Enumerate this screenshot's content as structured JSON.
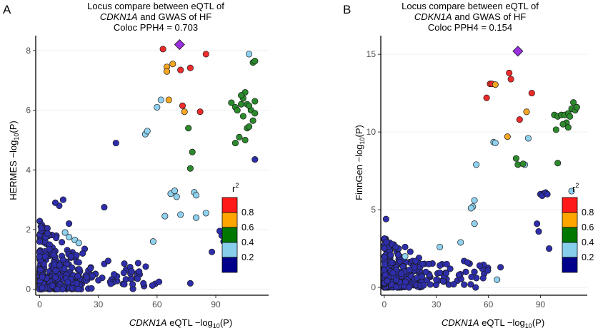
{
  "chart_data": [
    {
      "type": "scatter",
      "panel_letter": "A",
      "title_line1": "Locus compare between eQTL of",
      "title_gene": "CDKN1A",
      "title_line2_rest": " and  GWAS of HF",
      "title_line3": "Coloc PPH4 =  0.703",
      "xlabel_gene": "CDKN1A",
      "xlabel_rest": " eQTL −log",
      "xlabel_sub": "10",
      "xlabel_tail": "(P)",
      "ylabel_prefix": "HERMES −log",
      "ylabel_sub": "10",
      "ylabel_tail": "(P)",
      "xlim": [
        -2,
        117
      ],
      "ylim": [
        -0.2,
        8.5
      ],
      "xticks": [
        0,
        30,
        60,
        90
      ],
      "xtick_labels": [
        "0",
        "30",
        "60",
        "90"
      ],
      "yticks": [
        0,
        2,
        4,
        6,
        8
      ],
      "ytick_labels": [
        "0",
        "2",
        "4",
        "6",
        "8"
      ],
      "lead_snp": {
        "x": 71.5,
        "y": 8.2
      },
      "points": [
        [
          63,
          8.05,
          4
        ],
        [
          65,
          7.45,
          3
        ],
        [
          68,
          7.55,
          3
        ],
        [
          72,
          7.35,
          4
        ],
        [
          77,
          7.42,
          4
        ],
        [
          85,
          7.88,
          4
        ],
        [
          65,
          7.3,
          3
        ],
        [
          66,
          6.35,
          3
        ],
        [
          73,
          6.15,
          4
        ],
        [
          82,
          5.95,
          4
        ],
        [
          74,
          5.95,
          3
        ],
        [
          60,
          6.1,
          1
        ],
        [
          62,
          6.35,
          1
        ],
        [
          54,
          5.2,
          1
        ],
        [
          55,
          5.3,
          1
        ],
        [
          107,
          7.88,
          1
        ],
        [
          64,
          2.45,
          1
        ],
        [
          67,
          3.2,
          1
        ],
        [
          69,
          3.3,
          1
        ],
        [
          70,
          3.1,
          1
        ],
        [
          79,
          3.25,
          1
        ],
        [
          80,
          3.15,
          1
        ],
        [
          72,
          2.5,
          1
        ],
        [
          80,
          2.4,
          1
        ],
        [
          85,
          2.55,
          1
        ],
        [
          58,
          1.6,
          1
        ],
        [
          13,
          1.9,
          1
        ],
        [
          18,
          1.65,
          1
        ],
        [
          20,
          1.55,
          1
        ],
        [
          15,
          1.75,
          1
        ],
        [
          76,
          5.4,
          2
        ],
        [
          78,
          4.6,
          2
        ],
        [
          77,
          4.05,
          2
        ],
        [
          98,
          6.25,
          2
        ],
        [
          100,
          6.1,
          2
        ],
        [
          104,
          6.4,
          2
        ],
        [
          105,
          6.6,
          2
        ],
        [
          106,
          6.2,
          2
        ],
        [
          108,
          6.0,
          2
        ],
        [
          110,
          6.3,
          2
        ],
        [
          109,
          7.6,
          2
        ],
        [
          110,
          7.65,
          2
        ],
        [
          107,
          6.15,
          2
        ],
        [
          103,
          6.2,
          2
        ],
        [
          104,
          5.8,
          2
        ],
        [
          106,
          5.4,
          2
        ],
        [
          107,
          5.45,
          2
        ],
        [
          102,
          5.1,
          2
        ],
        [
          105,
          5.0,
          2
        ],
        [
          100,
          4.9,
          2
        ],
        [
          109,
          5.65,
          2
        ],
        [
          110,
          5.9,
          2
        ],
        [
          103,
          6.5,
          2
        ],
        [
          101,
          6.0,
          2
        ],
        [
          39,
          4.9,
          0
        ],
        [
          110,
          4.35,
          0
        ],
        [
          33,
          2.75,
          0
        ],
        [
          26,
          0.7,
          0
        ],
        [
          27,
          0.45,
          0
        ],
        [
          77,
          0.2,
          0
        ],
        [
          88,
          1.25,
          0
        ],
        [
          93,
          1.8,
          0
        ],
        [
          95,
          1.85,
          0
        ],
        [
          96,
          2.0,
          0
        ],
        [
          94,
          1.6,
          0
        ],
        [
          97,
          1.7,
          0
        ],
        [
          92,
          1.95,
          0
        ],
        [
          95,
          1.4,
          0
        ],
        [
          61,
          0.25,
          0
        ],
        [
          50,
          0.35,
          0
        ],
        [
          43,
          0.55,
          0
        ],
        [
          47,
          0.6,
          0
        ],
        [
          53,
          0.2,
          0
        ],
        [
          33,
          0.85,
          0
        ],
        [
          35,
          0.95,
          0
        ],
        [
          30,
          0.3,
          0
        ],
        [
          38,
          0.5,
          0
        ],
        [
          23,
          1.35,
          0
        ],
        [
          15,
          2.2,
          0
        ],
        [
          12,
          3.0,
          0
        ],
        [
          10,
          2.8,
          0
        ],
        [
          8,
          2.9,
          0
        ],
        [
          22,
          1.2,
          0
        ],
        [
          20,
          0.9,
          0
        ],
        [
          16,
          1.1,
          0
        ],
        [
          24,
          0.4,
          0
        ],
        [
          19,
          0.2,
          0
        ]
      ]
    },
    {
      "type": "scatter",
      "panel_letter": "B",
      "title_line1": "Locus compare between eQTL of",
      "title_gene": "CDKN1A",
      "title_line2_rest": " and  GWAS of HF",
      "title_line3": "Coloc PPH4 =  0.154",
      "xlabel_gene": "CDKN1A",
      "xlabel_rest": " eQTL −log",
      "xlabel_sub": "10",
      "xlabel_tail": "(P)",
      "ylabel_prefix": "FinnGen  −log",
      "ylabel_sub": "10",
      "ylabel_tail": "(P)",
      "xlim": [
        -2,
        117
      ],
      "ylim": [
        -0.5,
        16.2
      ],
      "xticks": [
        0,
        30,
        60,
        90
      ],
      "xtick_labels": [
        "0",
        "30",
        "60",
        "90"
      ],
      "yticks": [
        0,
        5,
        10,
        15
      ],
      "ytick_labels": [
        "0",
        "5",
        "10",
        "15"
      ],
      "lead_snp": {
        "x": 77,
        "y": 15.2
      },
      "points": [
        [
          72,
          13.8,
          4
        ],
        [
          73,
          13.4,
          4
        ],
        [
          61,
          13.1,
          4
        ],
        [
          62,
          13.1,
          4
        ],
        [
          85,
          12.5,
          4
        ],
        [
          59,
          12.2,
          4
        ],
        [
          78,
          10.8,
          4
        ],
        [
          82,
          11.3,
          3
        ],
        [
          64,
          13.05,
          3
        ],
        [
          71,
          9.7,
          3
        ],
        [
          63,
          9.35,
          1
        ],
        [
          64,
          9.3,
          1
        ],
        [
          81,
          7.9,
          1
        ],
        [
          83,
          9.6,
          1
        ],
        [
          52,
          5.6,
          1
        ],
        [
          51,
          5.2,
          1
        ],
        [
          50,
          5.1,
          1
        ],
        [
          52,
          4.1,
          1
        ],
        [
          44,
          2.9,
          1
        ],
        [
          65,
          0.5,
          1
        ],
        [
          32,
          2.6,
          1
        ],
        [
          53,
          7.9,
          1
        ],
        [
          108,
          6.2,
          1
        ],
        [
          12,
          2.0,
          1
        ],
        [
          76,
          8.3,
          2
        ],
        [
          77,
          7.9,
          2
        ],
        [
          80,
          7.95,
          2
        ],
        [
          98,
          11.1,
          2
        ],
        [
          100,
          11.0,
          2
        ],
        [
          102,
          11.1,
          2
        ],
        [
          104,
          11.1,
          2
        ],
        [
          106,
          11.2,
          2
        ],
        [
          108,
          11.5,
          2
        ],
        [
          110,
          11.4,
          2
        ],
        [
          109,
          11.9,
          2
        ],
        [
          111,
          11.6,
          2
        ],
        [
          105,
          10.6,
          2
        ],
        [
          103,
          10.5,
          2
        ],
        [
          106,
          10.3,
          2
        ],
        [
          99,
          10.15,
          2
        ],
        [
          100,
          8.0,
          2
        ],
        [
          107,
          11.0,
          2
        ],
        [
          88,
          4.1,
          0
        ],
        [
          90,
          6.0,
          0
        ],
        [
          92,
          6.05,
          0
        ],
        [
          91,
          5.9,
          0
        ],
        [
          93,
          6.1,
          0
        ],
        [
          94,
          6.0,
          0
        ],
        [
          89,
          3.6,
          0
        ],
        [
          95,
          2.5,
          0
        ],
        [
          67,
          1.3,
          0
        ],
        [
          46,
          1.7,
          0
        ],
        [
          48,
          1.6,
          0
        ],
        [
          47,
          1.0,
          0
        ],
        [
          55,
          1.4,
          0
        ],
        [
          52,
          1.0,
          0
        ],
        [
          57,
          0.6,
          0
        ],
        [
          38,
          1.2,
          0
        ],
        [
          40,
          0.2,
          0
        ],
        [
          43,
          0.8,
          0
        ],
        [
          36,
          1.5,
          0
        ],
        [
          30,
          0.5,
          0
        ],
        [
          26,
          0.8,
          0
        ],
        [
          22,
          1.5,
          0
        ],
        [
          20,
          1.9,
          0
        ],
        [
          24,
          1.0,
          0
        ],
        [
          15,
          2.3,
          0
        ],
        [
          12,
          2.6,
          0
        ],
        [
          8,
          2.1,
          0
        ],
        [
          18,
          1.7,
          0
        ],
        [
          34,
          0.4,
          0
        ],
        [
          1,
          4.4,
          0
        ]
      ]
    }
  ],
  "legend": {
    "title_base": "r",
    "title_exp": "2",
    "labels": [
      "0.8",
      "0.6",
      "0.4",
      "0.2"
    ],
    "colors": [
      "#ff1a1a",
      "#ffa500",
      "#007800",
      "#87ceeb",
      "#00008b"
    ]
  },
  "point_colors": [
    "#2e2eab",
    "#8fd1ef",
    "#2b8a2b",
    "#f5a623",
    "#ef2b2b"
  ],
  "lead_color": "#9b30e0"
}
